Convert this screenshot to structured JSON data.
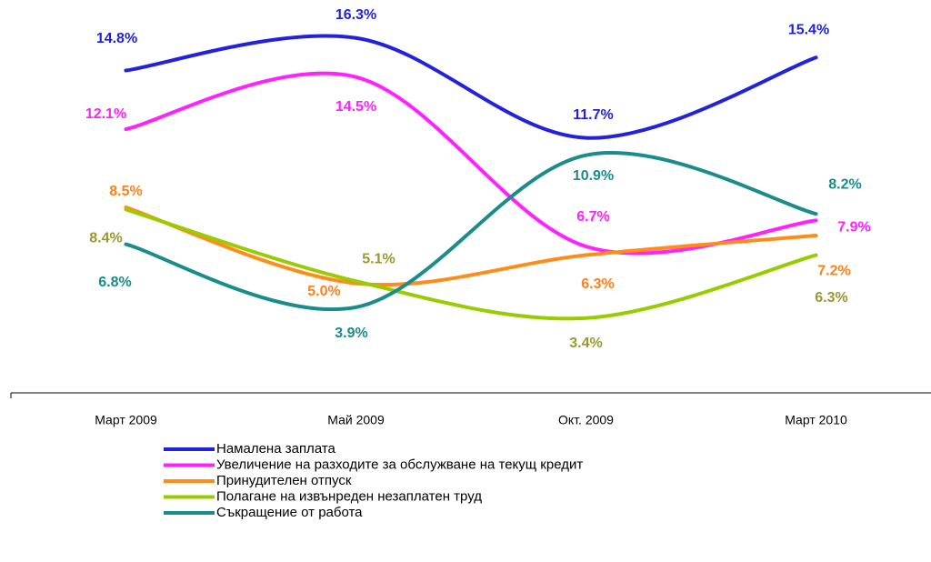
{
  "chart_data": {
    "type": "line",
    "categories": [
      "Март 2009",
      "Май 2009",
      "Окт. 2009",
      "Март 2010"
    ],
    "ylim": [
      0,
      17
    ],
    "series": [
      {
        "name": "Намалена заплата",
        "color": "#2222dd",
        "label_color": "#2222dd",
        "values": [
          14.8,
          16.3,
          11.7,
          15.4
        ],
        "value_labels": [
          "14.8%",
          "16.3%",
          "11.7%",
          "15.4%"
        ]
      },
      {
        "name": "Увеличение на разходите за обслужване на текущ кредит",
        "color": "#ff22ff",
        "label_color": "#ff22ff",
        "values": [
          12.1,
          14.5,
          6.7,
          7.9
        ],
        "value_labels": [
          "12.1%",
          "14.5%",
          "6.7%",
          "7.9%"
        ]
      },
      {
        "name": "Принудителен отпуск",
        "color": "#ff8c1a",
        "label_color": "#ff7f1a",
        "values": [
          8.5,
          5.0,
          6.3,
          7.2
        ],
        "value_labels": [
          "8.5%",
          "5.0%",
          "6.3%",
          "7.2%"
        ]
      },
      {
        "name": "Полагане на извънреден незаплатен труд",
        "color": "#99cc00",
        "label_color": "#99992e",
        "values": [
          8.4,
          5.1,
          3.4,
          6.3
        ],
        "value_labels": [
          "8.4%",
          "5.1%",
          "3.4%",
          "6.3%"
        ]
      },
      {
        "name": "Съкращение от работа",
        "color": "#1a8c8c",
        "label_color": "#1a8c8c",
        "values": [
          6.8,
          3.9,
          10.9,
          8.2
        ],
        "value_labels": [
          "6.8%",
          "3.9%",
          "10.9%",
          "8.2%"
        ]
      }
    ]
  }
}
